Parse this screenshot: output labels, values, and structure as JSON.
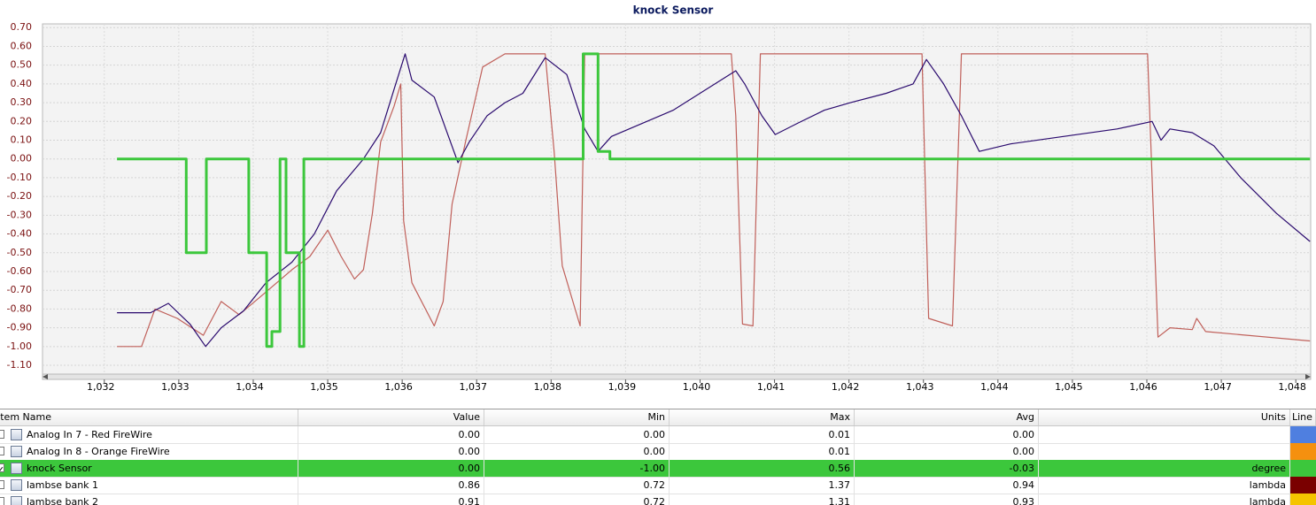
{
  "chart_data": {
    "type": "line",
    "title": "knock Sensor",
    "xlim": [
      1031.17,
      1048.2
    ],
    "ylim": [
      -1.147,
      0.72
    ],
    "xticks": [
      {
        "value": 1032,
        "label": "1,032"
      },
      {
        "value": 1033,
        "label": "1,033"
      },
      {
        "value": 1034,
        "label": "1,034"
      },
      {
        "value": 1035,
        "label": "1,035"
      },
      {
        "value": 1036,
        "label": "1,036"
      },
      {
        "value": 1037,
        "label": "1,037"
      },
      {
        "value": 1038,
        "label": "1,038"
      },
      {
        "value": 1039,
        "label": "1,039"
      },
      {
        "value": 1040,
        "label": "1,040"
      },
      {
        "value": 1041,
        "label": "1,041"
      },
      {
        "value": 1042,
        "label": "1,042"
      },
      {
        "value": 1043,
        "label": "1,043"
      },
      {
        "value": 1044,
        "label": "1,044"
      },
      {
        "value": 1045,
        "label": "1,045"
      },
      {
        "value": 1046,
        "label": "1,046"
      },
      {
        "value": 1047,
        "label": "1,047"
      },
      {
        "value": 1048,
        "label": "1,048"
      }
    ],
    "yticks": [
      {
        "value": 0.7,
        "label": "0.70"
      },
      {
        "value": 0.6,
        "label": "0.60"
      },
      {
        "value": 0.5,
        "label": "0.50"
      },
      {
        "value": 0.4,
        "label": "0.40"
      },
      {
        "value": 0.3,
        "label": "0.30"
      },
      {
        "value": 0.2,
        "label": "0.20"
      },
      {
        "value": 0.1,
        "label": "0.10"
      },
      {
        "value": 0,
        "label": "0.00"
      },
      {
        "value": -0.1,
        "label": "-0.10"
      },
      {
        "value": -0.2,
        "label": "-0.20"
      },
      {
        "value": -0.3,
        "label": "-0.30"
      },
      {
        "value": -0.4,
        "label": "-0.40"
      },
      {
        "value": -0.5,
        "label": "-0.50"
      },
      {
        "value": -0.6,
        "label": "-0.60"
      },
      {
        "value": -0.7,
        "label": "-0.70"
      },
      {
        "value": -0.8,
        "label": "-0.80"
      },
      {
        "value": -0.9,
        "label": "-0.90"
      },
      {
        "value": -1,
        "label": "-1.00"
      },
      {
        "value": -1.1,
        "label": "-1.10"
      }
    ],
    "grid": true,
    "series": [
      {
        "color": "#c0605a",
        "x": [
          1032.17,
          1032.5,
          1032.68,
          1032.98,
          1033.33,
          1033.57,
          1033.81,
          1034.11,
          1034.52,
          1034.76,
          1035.0,
          1035.18,
          1035.36,
          1035.48,
          1035.6,
          1035.71,
          1035.89,
          1035.98,
          1036.02,
          1036.13,
          1036.43,
          1036.55,
          1036.67,
          1036.85,
          1037.08,
          1037.38,
          1037.92,
          1038.04,
          1038.15,
          1038.39,
          1038.45,
          1040.42,
          1040.48,
          1040.57,
          1040.71,
          1040.81,
          1042.98,
          1043.07,
          1043.39,
          1043.51,
          1046.01,
          1046.07,
          1046.15,
          1046.31,
          1046.61,
          1046.67,
          1046.79,
          1048.19
        ],
        "values": [
          -1.0,
          -1.0,
          -0.8,
          -0.85,
          -0.94,
          -0.76,
          -0.83,
          -0.73,
          -0.59,
          -0.52,
          -0.38,
          -0.52,
          -0.64,
          -0.59,
          -0.29,
          0.09,
          0.28,
          0.4,
          -0.33,
          -0.66,
          -0.89,
          -0.76,
          -0.24,
          0.09,
          0.49,
          0.56,
          0.56,
          0.04,
          -0.57,
          -0.89,
          0.56,
          0.56,
          0.23,
          -0.88,
          -0.89,
          0.56,
          0.56,
          -0.85,
          -0.89,
          0.56,
          0.56,
          -0.1,
          -0.95,
          -0.9,
          -0.91,
          -0.85,
          -0.92,
          -0.97
        ]
      },
      {
        "color": "#2a0a6e",
        "x": [
          1032.17,
          1032.62,
          1032.86,
          1033.15,
          1033.36,
          1033.57,
          1033.87,
          1034.17,
          1034.52,
          1034.82,
          1035.12,
          1035.48,
          1035.71,
          1035.89,
          1036.04,
          1036.13,
          1036.43,
          1036.75,
          1036.9,
          1037.14,
          1037.38,
          1037.62,
          1037.92,
          1038.21,
          1038.45,
          1038.63,
          1038.81,
          1039.64,
          1040.48,
          1040.6,
          1040.83,
          1041.01,
          1041.31,
          1041.67,
          1042.02,
          1042.5,
          1042.86,
          1043.04,
          1043.27,
          1043.51,
          1043.75,
          1044.17,
          1044.88,
          1045.6,
          1046.07,
          1046.19,
          1046.31,
          1046.61,
          1046.9,
          1047.26,
          1047.74,
          1048.19
        ],
        "values": [
          -0.82,
          -0.82,
          -0.77,
          -0.88,
          -1.0,
          -0.9,
          -0.81,
          -0.66,
          -0.55,
          -0.4,
          -0.17,
          0.0,
          0.14,
          0.37,
          0.56,
          0.42,
          0.33,
          -0.02,
          0.09,
          0.23,
          0.3,
          0.35,
          0.54,
          0.45,
          0.16,
          0.04,
          0.12,
          0.26,
          0.47,
          0.4,
          0.23,
          0.13,
          0.19,
          0.26,
          0.3,
          0.35,
          0.4,
          0.53,
          0.4,
          0.23,
          0.04,
          0.08,
          0.12,
          0.16,
          0.2,
          0.1,
          0.16,
          0.14,
          0.07,
          -0.1,
          -0.29,
          -0.44
        ]
      },
      {
        "color": "#3cc73c",
        "x": [
          1032.17,
          1033.1,
          1033.1,
          1033.37,
          1033.37,
          1033.94,
          1033.94,
          1034.18,
          1034.18,
          1034.25,
          1034.25,
          1034.36,
          1034.36,
          1034.44,
          1034.44,
          1034.62,
          1034.62,
          1034.68,
          1034.68,
          1038.43,
          1038.43,
          1038.63,
          1038.63,
          1038.79,
          1038.79,
          1048.19
        ],
        "values": [
          0,
          0,
          -0.5,
          -0.5,
          0,
          0,
          -0.5,
          -0.5,
          -1,
          -1,
          -0.92,
          -0.92,
          0,
          0,
          -0.5,
          -0.5,
          -1,
          -1,
          0,
          0,
          0.56,
          0.56,
          0.04,
          0.04,
          0,
          0
        ]
      }
    ]
  },
  "table": {
    "columns": [
      "Item Name",
      "Value",
      "Min",
      "Max",
      "Avg",
      "Units",
      "Line"
    ],
    "rows": [
      {
        "cells": [
          "Analog In 7 - Red FireWire",
          "0.00",
          "0.00",
          "0.01",
          "0.00",
          ""
        ],
        "line_color": "#4f7fe0"
      },
      {
        "cells": [
          "Analog In 8 - Orange FireWire",
          "0.00",
          "0.00",
          "0.01",
          "0.00",
          ""
        ],
        "line_color": "#f5900f"
      },
      {
        "cells": [
          "knock Sensor",
          "0.00",
          "-1.00",
          "0.56",
          "-0.03",
          "degree"
        ],
        "line_color": "#3cc73c",
        "selected": true
      },
      {
        "cells": [
          "lambse bank 1",
          "0.86",
          "0.72",
          "1.37",
          "0.94",
          "lambda"
        ],
        "line_color": "#7a0000"
      },
      {
        "cells": [
          "lambse bank 2",
          "0.91",
          "0.72",
          "1.31",
          "0.93",
          "lambda"
        ],
        "line_color": "#f5c400"
      }
    ]
  }
}
